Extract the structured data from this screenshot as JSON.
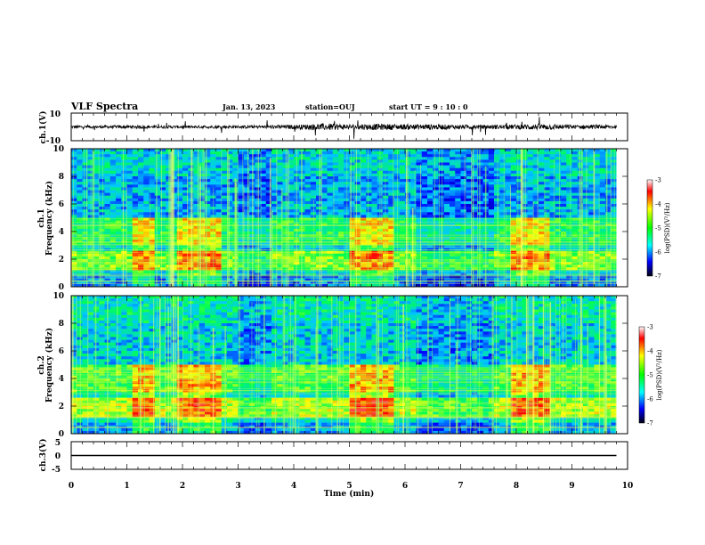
{
  "header": {
    "title": "VLF Spectra",
    "date": "Jan. 13, 2023",
    "station": "station=OUJ",
    "start": "start UT =  9 : 10 : 0"
  },
  "chart_data": [
    {
      "name": "ch1-waveform",
      "type": "line",
      "ylabel": "ch.1(V)",
      "ylim": [
        -10,
        10
      ],
      "yticks": [
        "10",
        "-10"
      ],
      "xlim": [
        0,
        10
      ],
      "note": "dense waveform; envelope amplitude (V) per 0.5 min",
      "envelope_x": [
        0,
        0.5,
        1,
        1.5,
        2,
        2.5,
        3,
        3.5,
        4,
        4.5,
        5,
        5.5,
        6,
        6.5,
        7,
        7.5,
        8,
        8.5,
        9,
        9.5,
        9.8
      ],
      "envelope_amp": [
        2,
        2,
        2.5,
        2,
        2,
        2,
        2,
        2.5,
        3,
        5,
        4,
        4.5,
        4,
        4,
        3,
        3,
        3.5,
        4.5,
        3,
        3,
        2.5
      ]
    },
    {
      "name": "ch1-spectrogram",
      "type": "heatmap",
      "ylabel": "ch.1\nFrequency (kHz)",
      "ylim": [
        0,
        10
      ],
      "yticks": [
        "0",
        "2",
        "4",
        "6",
        "8",
        "10"
      ],
      "xlim": [
        0,
        10
      ],
      "colorbar": {
        "label": "log(PSD)(V²/Hz)",
        "range": [
          -7,
          -3
        ],
        "ticks": [
          "-3",
          "-4",
          "-5",
          "-6",
          "-7"
        ]
      }
    },
    {
      "name": "ch2-spectrogram",
      "type": "heatmap",
      "ylabel": "ch.2\nFrequency (kHz)",
      "ylim": [
        0,
        10
      ],
      "yticks": [
        "0",
        "2",
        "4",
        "6",
        "8",
        "10"
      ],
      "xlim": [
        0,
        10
      ],
      "colorbar": {
        "label": "log(PSD)(V²/Hz)",
        "range": [
          -7,
          -3
        ],
        "ticks": [
          "-3",
          "-4",
          "-5",
          "-6",
          "-7"
        ]
      }
    },
    {
      "name": "ch3-waveform",
      "type": "line",
      "ylabel": "ch.3(V)",
      "ylim": [
        -5,
        5
      ],
      "yticks": [
        "5",
        "0",
        "-5"
      ],
      "x": [
        0,
        9.8
      ],
      "y": [
        0,
        0
      ]
    }
  ],
  "xaxis": {
    "label": "Time (min)",
    "ticks": [
      "0",
      "1",
      "2",
      "3",
      "4",
      "5",
      "6",
      "7",
      "8",
      "9",
      "10"
    ],
    "range": [
      0,
      10
    ]
  }
}
